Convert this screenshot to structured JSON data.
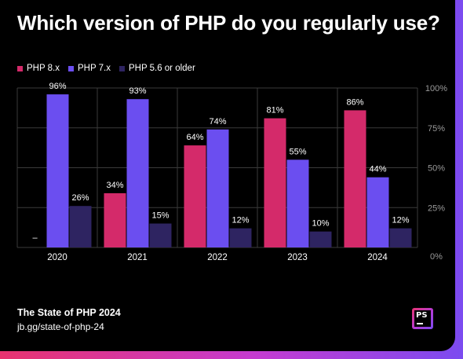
{
  "colors": {
    "php8": "#d42a6a",
    "php7": "#6b4ef0",
    "php56": "#2e2461",
    "grid": "#3a3a3a",
    "text": "#ffffff",
    "axis_text": "#9a9a9a"
  },
  "chart_data": {
    "type": "bar",
    "title": "Which version of PHP do you regularly use?",
    "xlabel": "",
    "ylabel": "",
    "ylim": [
      0,
      100
    ],
    "yticks": [
      0,
      25,
      50,
      75,
      100
    ],
    "ytick_labels": [
      "0%",
      "25%",
      "50%",
      "75%",
      "100%"
    ],
    "grid": true,
    "legend_placement": "top-left",
    "categories": [
      "2020",
      "2021",
      "2022",
      "2023",
      "2024"
    ],
    "series": [
      {
        "name": "PHP 8.x",
        "values": [
          null,
          34,
          64,
          81,
          86
        ],
        "labels": [
          "–",
          "34%",
          "64%",
          "81%",
          "86%"
        ]
      },
      {
        "name": "PHP 7.x",
        "values": [
          96,
          93,
          74,
          55,
          44
        ],
        "labels": [
          "96%",
          "93%",
          "74%",
          "55%",
          "44%"
        ]
      },
      {
        "name": "PHP 5.6 or older",
        "values": [
          26,
          15,
          12,
          10,
          12
        ],
        "labels": [
          "26%",
          "15%",
          "12%",
          "10%",
          "12%"
        ]
      }
    ]
  },
  "footer": {
    "source": "The State of PHP 2024",
    "url": "jb.gg/state-of-php-24"
  },
  "logo": {
    "text": "PS"
  }
}
